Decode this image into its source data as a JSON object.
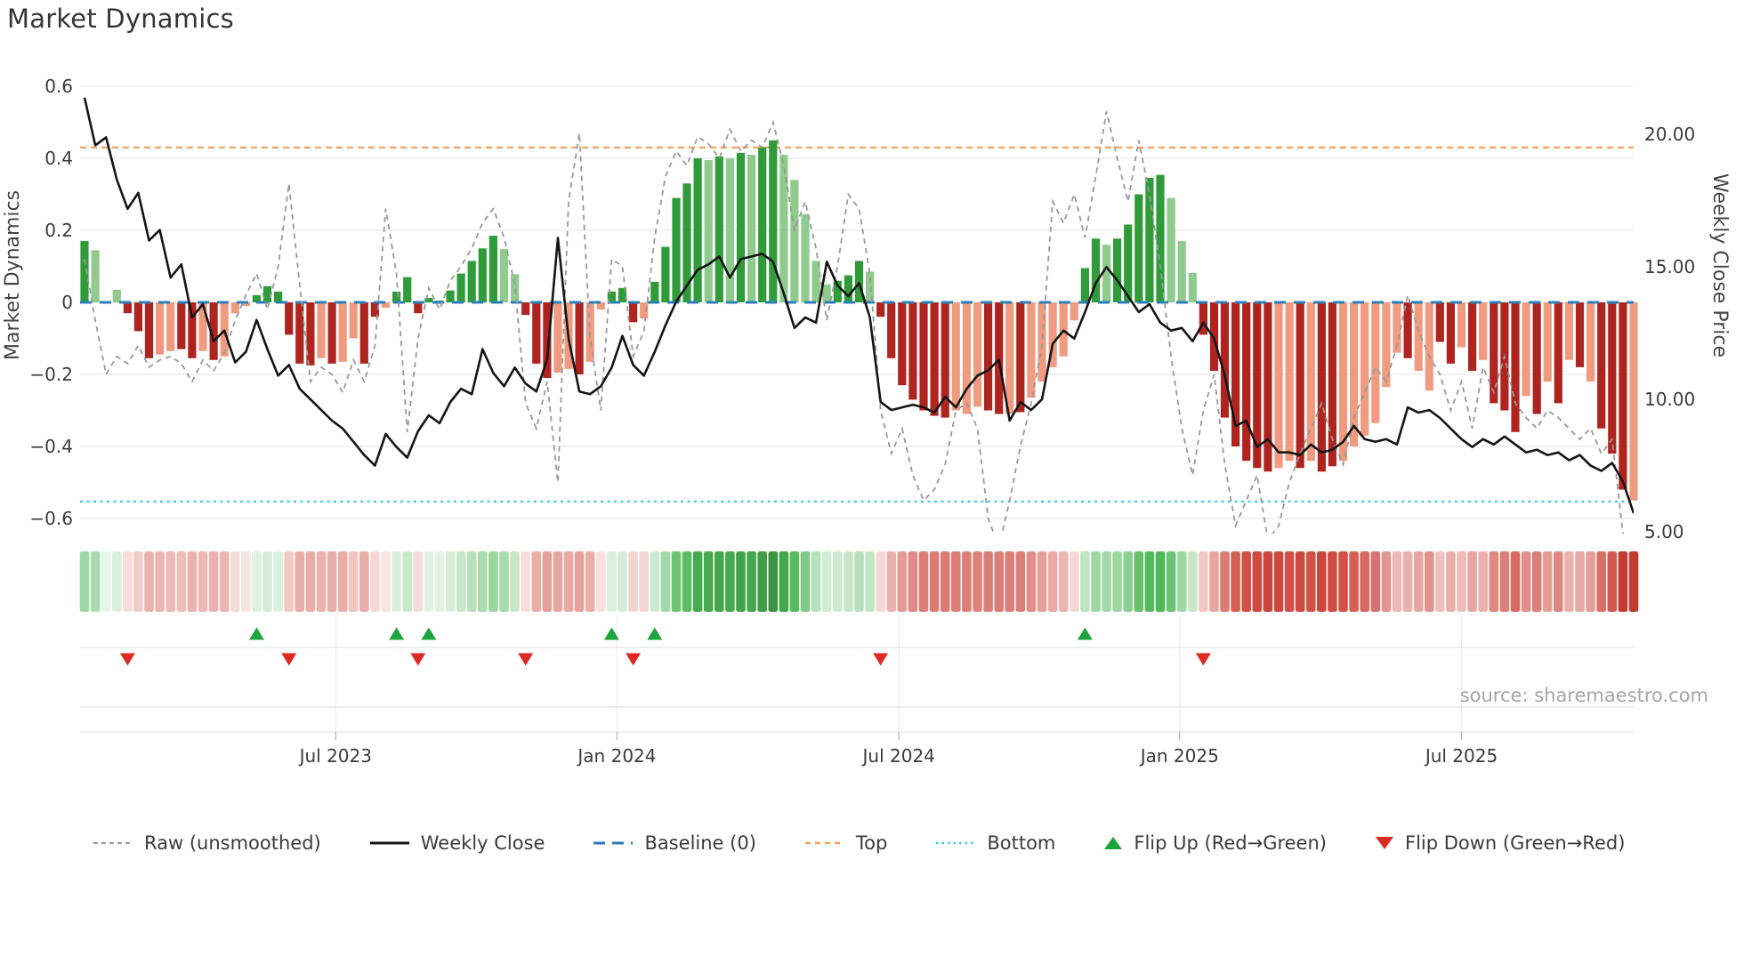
{
  "header": {
    "title": "Market Dynamics"
  },
  "axes": {
    "left_label": "Market Dynamics",
    "right_label": "Weekly Close Price",
    "left_ticks": [
      "0.6",
      "0.4",
      "0.2",
      "0",
      "−0.2",
      "−0.4",
      "−0.6"
    ],
    "right_ticks": [
      "20.00",
      "15.00",
      "10.00",
      "5.00"
    ],
    "x_ticks": [
      "Jul 2023",
      "Jan 2024",
      "Jul 2024",
      "Jan 2025",
      "Jul 2025"
    ]
  },
  "source_text": "source: sharemaestro.com",
  "legend": [
    {
      "id": "raw",
      "label": "Raw (unsmoothed)",
      "swatch": "dashed-gray-line"
    },
    {
      "id": "weekly-close",
      "label": "Weekly Close",
      "swatch": "solid-black-line"
    },
    {
      "id": "baseline",
      "label": "Baseline (0)",
      "swatch": "long-dashed-blue-line"
    },
    {
      "id": "top",
      "label": "Top",
      "swatch": "dashed-orange-line"
    },
    {
      "id": "bottom",
      "label": "Bottom",
      "swatch": "dotted-cyan-line"
    },
    {
      "id": "flip-up",
      "label": "Flip Up (Red→Green)",
      "swatch": "green-up-triangle"
    },
    {
      "id": "flip-down",
      "label": "Flip Down (Green→Red)",
      "swatch": "red-down-triangle"
    }
  ],
  "colors": {
    "bar_green_dark": "#2f9c39",
    "bar_green_light": "#90cb8e",
    "bar_red_dark": "#b0241f",
    "bar_red_light": "#f09b80",
    "line_black": "#151515",
    "line_raw": "#999999",
    "baseline_blue": "#2d7fb8",
    "top_orange": "#f2a35f",
    "bottom_cyan": "#3fc8e0",
    "flip_green": "#1ea43c",
    "flip_red": "#dc2a25",
    "gridline": "#edeef3"
  },
  "chart_data": {
    "type": "combo (weekly momentum bars + weekly close line + raw dashed line + heatmap strip + flip markers)",
    "title": "Market Dynamics",
    "weeks": 145,
    "x_tick_labels": [
      "Jul 2023",
      "Jan 2024",
      "Jul 2024",
      "Jan 2025",
      "Jul 2025"
    ],
    "x_tick_week_index": [
      23.35,
      49.5,
      75.7,
      101.8,
      128.0
    ],
    "left_axis": {
      "label": "Market Dynamics",
      "ticks": [
        0.6,
        0.4,
        0.2,
        0,
        -0.2,
        -0.4,
        -0.6
      ],
      "range": [
        -0.65,
        0.64
      ]
    },
    "right_axis": {
      "label": "Weekly Close Price",
      "ticks": [
        20,
        15,
        10,
        5
      ],
      "range": [
        5,
        21.5
      ]
    },
    "reference_lines": {
      "baseline": 0,
      "top": 0.43,
      "bottom": -0.553
    },
    "flip_up_weeks": [
      16,
      29,
      32,
      49,
      53,
      93
    ],
    "flip_down_weeks": [
      4,
      19,
      31,
      41,
      51,
      74,
      104
    ],
    "series": {
      "momentum_bars": {
        "values": [
          0.17,
          0.145,
          0.0,
          0.035,
          -0.03,
          -0.08,
          -0.155,
          -0.145,
          -0.135,
          -0.13,
          -0.155,
          -0.135,
          -0.16,
          -0.15,
          -0.03,
          -0.01,
          0.02,
          0.045,
          0.03,
          -0.09,
          -0.17,
          -0.175,
          -0.155,
          -0.17,
          -0.165,
          -0.1,
          -0.17,
          -0.04,
          -0.015,
          0.03,
          0.07,
          -0.03,
          0.012,
          0.005,
          0.033,
          0.08,
          0.115,
          0.15,
          0.185,
          0.148,
          0.078,
          -0.035,
          -0.17,
          -0.21,
          -0.195,
          -0.185,
          -0.2,
          -0.165,
          -0.02,
          0.03,
          0.04,
          -0.055,
          -0.045,
          0.057,
          0.154,
          0.29,
          0.33,
          0.4,
          0.395,
          0.405,
          0.4,
          0.415,
          0.41,
          0.43,
          0.45,
          0.41,
          0.34,
          0.245,
          0.115,
          0.05,
          0.06,
          0.075,
          0.115,
          0.085,
          -0.04,
          -0.155,
          -0.23,
          -0.27,
          -0.3,
          -0.315,
          -0.32,
          -0.3,
          -0.31,
          -0.29,
          -0.3,
          -0.31,
          -0.31,
          -0.305,
          -0.265,
          -0.22,
          -0.18,
          -0.15,
          -0.05,
          0.095,
          0.177,
          0.16,
          0.177,
          0.216,
          0.3,
          0.346,
          0.354,
          0.29,
          0.17,
          0.082,
          -0.09,
          -0.19,
          -0.32,
          -0.4,
          -0.44,
          -0.46,
          -0.47,
          -0.46,
          -0.44,
          -0.46,
          -0.44,
          -0.47,
          -0.455,
          -0.44,
          -0.4,
          -0.37,
          -0.335,
          -0.235,
          -0.14,
          -0.155,
          -0.19,
          -0.245,
          -0.11,
          -0.17,
          -0.125,
          -0.19,
          -0.16,
          -0.28,
          -0.3,
          -0.36,
          -0.26,
          -0.31,
          -0.22,
          -0.28,
          -0.16,
          -0.18,
          -0.22,
          -0.35,
          -0.42,
          -0.52,
          -0.55
        ],
        "shade": [
          "D",
          "L",
          "D",
          "L",
          "D",
          "D",
          "D",
          "L",
          "L",
          "D",
          "D",
          "L",
          "D",
          "L",
          "L",
          "L",
          "D",
          "D",
          "D",
          "D",
          "D",
          "D",
          "L",
          "D",
          "L",
          "L",
          "D",
          "D",
          "L",
          "D",
          "D",
          "D",
          "D",
          "D",
          "D",
          "D",
          "D",
          "D",
          "D",
          "L",
          "L",
          "D",
          "D",
          "D",
          "L",
          "L",
          "D",
          "L",
          "L",
          "D",
          "D",
          "D",
          "L",
          "D",
          "D",
          "D",
          "D",
          "D",
          "L",
          "D",
          "L",
          "D",
          "L",
          "D",
          "D",
          "L",
          "L",
          "L",
          "L",
          "L",
          "D",
          "D",
          "D",
          "L",
          "D",
          "D",
          "D",
          "D",
          "D",
          "D",
          "D",
          "L",
          "L",
          "L",
          "D",
          "D",
          "L",
          "D",
          "L",
          "L",
          "L",
          "L",
          "L",
          "D",
          "D",
          "L",
          "D",
          "D",
          "D",
          "D",
          "D",
          "L",
          "L",
          "L",
          "D",
          "D",
          "D",
          "D",
          "D",
          "D",
          "D",
          "L",
          "L",
          "D",
          "L",
          "D",
          "D",
          "L",
          "L",
          "L",
          "L",
          "L",
          "L",
          "D",
          "L",
          "L",
          "D",
          "D",
          "L",
          "D",
          "L",
          "D",
          "D",
          "D",
          "L",
          "D",
          "L",
          "D",
          "L",
          "D",
          "L",
          "D",
          "D",
          "D",
          "L"
        ]
      },
      "weekly_close": {
        "values": [
          21.4,
          19.6,
          19.9,
          18.3,
          17.2,
          17.8,
          16.0,
          16.4,
          14.6,
          15.1,
          13.1,
          13.6,
          12.2,
          12.6,
          11.4,
          11.8,
          13.0,
          11.9,
          10.9,
          11.3,
          10.4,
          10.0,
          9.6,
          9.2,
          8.9,
          8.4,
          7.9,
          7.5,
          8.7,
          8.2,
          7.8,
          8.8,
          9.4,
          9.1,
          9.9,
          10.4,
          10.2,
          11.9,
          11.0,
          10.5,
          11.2,
          10.6,
          10.3,
          11.5,
          16.1,
          12.3,
          10.3,
          10.2,
          10.5,
          11.2,
          12.4,
          11.3,
          10.9,
          11.8,
          12.8,
          13.7,
          14.3,
          14.9,
          15.1,
          15.4,
          14.6,
          15.3,
          15.4,
          15.5,
          15.2,
          14.0,
          12.7,
          13.1,
          12.9,
          15.2,
          14.3,
          13.9,
          14.4,
          13.1,
          9.9,
          9.6,
          9.7,
          9.8,
          9.7,
          9.5,
          10.1,
          9.7,
          10.4,
          10.9,
          11.1,
          11.5,
          9.2,
          9.9,
          9.6,
          10.0,
          12.1,
          12.6,
          12.3,
          13.3,
          14.4,
          15.0,
          14.5,
          13.9,
          13.3,
          13.6,
          12.9,
          12.6,
          12.7,
          12.2,
          12.9,
          12.3,
          10.9,
          9.0,
          9.2,
          8.2,
          8.5,
          8.0,
          8.0,
          7.9,
          8.3,
          8.0,
          8.1,
          8.4,
          9.0,
          8.5,
          8.4,
          8.5,
          8.3,
          9.7,
          9.5,
          9.6,
          9.3,
          8.9,
          8.5,
          8.2,
          8.5,
          8.3,
          8.6,
          8.3,
          8.0,
          8.1,
          7.9,
          8.0,
          7.7,
          7.9,
          7.5,
          7.3,
          7.6,
          6.9,
          5.7
        ]
      },
      "raw_unsmoothed": {
        "values": [
          0.12,
          -0.05,
          -0.2,
          -0.15,
          -0.17,
          -0.12,
          -0.18,
          -0.16,
          -0.15,
          -0.17,
          -0.22,
          -0.16,
          -0.19,
          -0.14,
          -0.05,
          0.02,
          0.08,
          -0.02,
          0.1,
          0.33,
          0.05,
          -0.22,
          -0.18,
          -0.2,
          -0.25,
          -0.16,
          -0.22,
          -0.12,
          0.26,
          0.08,
          -0.36,
          -0.1,
          0.04,
          -0.02,
          0.06,
          0.1,
          0.15,
          0.22,
          0.26,
          0.18,
          0.05,
          -0.28,
          -0.35,
          -0.22,
          -0.5,
          0.28,
          0.47,
          -0.1,
          -0.3,
          0.12,
          0.1,
          -0.15,
          -0.08,
          0.18,
          0.35,
          0.42,
          0.38,
          0.46,
          0.44,
          0.4,
          0.48,
          0.42,
          0.45,
          0.43,
          0.5,
          0.38,
          0.2,
          0.28,
          0.15,
          -0.05,
          0.1,
          0.3,
          0.26,
          0.08,
          -0.3,
          -0.42,
          -0.35,
          -0.48,
          -0.55,
          -0.52,
          -0.45,
          -0.3,
          -0.28,
          -0.35,
          -0.6,
          -0.68,
          -0.55,
          -0.4,
          -0.28,
          -0.12,
          0.28,
          0.22,
          0.3,
          0.18,
          0.35,
          0.53,
          0.4,
          0.28,
          0.45,
          0.3,
          0.1,
          -0.15,
          -0.35,
          -0.48,
          -0.3,
          -0.2,
          -0.45,
          -0.62,
          -0.55,
          -0.48,
          -0.66,
          -0.62,
          -0.5,
          -0.42,
          -0.35,
          -0.28,
          -0.38,
          -0.45,
          -0.32,
          -0.25,
          -0.18,
          -0.22,
          -0.12,
          0.02,
          -0.08,
          -0.15,
          -0.2,
          -0.3,
          -0.22,
          -0.35,
          -0.18,
          -0.25,
          -0.15,
          -0.28,
          -0.32,
          -0.35,
          -0.3,
          -0.32,
          -0.35,
          -0.38,
          -0.35,
          -0.42,
          -0.38,
          -0.64,
          -0.7
        ]
      },
      "heatmap_strip": "one cell per week, hue from momentum bar sign, intensity from |value|"
    }
  }
}
